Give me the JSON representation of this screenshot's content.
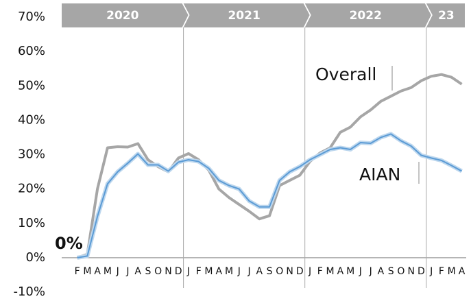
{
  "chart_data": {
    "type": "line",
    "annotation": "0%",
    "groups": [
      {
        "label": "2020",
        "categories": [
          "F",
          "M",
          "A",
          "M",
          "J",
          "J",
          "A",
          "S",
          "O",
          "N",
          "D"
        ]
      },
      {
        "label": "2021",
        "categories": [
          "J",
          "F",
          "M",
          "A",
          "M",
          "J",
          "J",
          "A",
          "S",
          "O",
          "N",
          "D"
        ]
      },
      {
        "label": "2022",
        "categories": [
          "J",
          "F",
          "M",
          "A",
          "M",
          "J",
          "J",
          "A",
          "S",
          "O",
          "N",
          "D"
        ]
      },
      {
        "label": "23",
        "categories": [
          "J",
          "F",
          "M",
          "A"
        ]
      }
    ],
    "series": [
      {
        "name": "Overall",
        "color": "#a6a6a6",
        "values": [
          0,
          1,
          20,
          32,
          32.3,
          32.2,
          33.2,
          28.5,
          26.5,
          25,
          29,
          30.3,
          28.5,
          25.5,
          20,
          17.5,
          15.5,
          13.5,
          11.3,
          12.2,
          21,
          22.5,
          24,
          28,
          30.5,
          32,
          36.5,
          38,
          41,
          43,
          45.5,
          47,
          48.5,
          49.5,
          51.5,
          52.8,
          53.3,
          52.5,
          50.5
        ]
      },
      {
        "name": "AIAN",
        "color": "#5b9bd5",
        "values": [
          0,
          0.5,
          12,
          21.5,
          25,
          27.5,
          30.2,
          27,
          27,
          25.2,
          27.8,
          28.5,
          28,
          26,
          22.5,
          21,
          20,
          16.5,
          14.8,
          14.8,
          22.5,
          25,
          26.5,
          28.5,
          30,
          31.5,
          32,
          31.5,
          33.5,
          33.3,
          35,
          36,
          34,
          32.5,
          29.8,
          29,
          28.3,
          26.8,
          25.2
        ]
      }
    ],
    "ylim": [
      -10,
      70
    ],
    "yticks": [
      {
        "value": -10,
        "label": "-10%"
      },
      {
        "value": 0,
        "label": "0%"
      },
      {
        "value": 10,
        "label": "10%"
      },
      {
        "value": 20,
        "label": "20%"
      },
      {
        "value": 30,
        "label": "30%"
      },
      {
        "value": 40,
        "label": "40%"
      },
      {
        "value": 50,
        "label": "50%"
      },
      {
        "value": 60,
        "label": "60%"
      },
      {
        "value": 70,
        "label": "70%"
      }
    ]
  }
}
